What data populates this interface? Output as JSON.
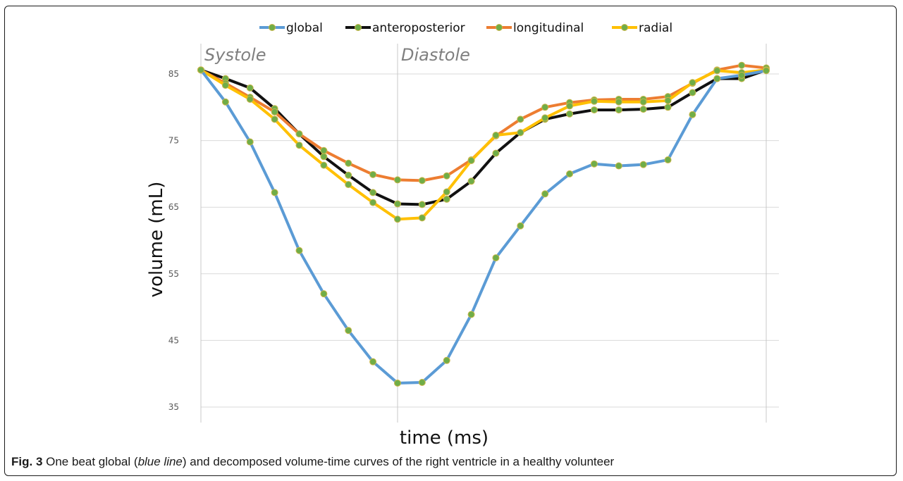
{
  "chart_data": {
    "type": "line",
    "xlabel": "time (ms)",
    "ylabel": "volume (mL)",
    "ylim": [
      35,
      90
    ],
    "yticks": [
      35,
      45,
      55,
      65,
      75,
      85
    ],
    "grid": true,
    "legend_position": "top",
    "phase_labels": [
      "Systole",
      "Diastole"
    ],
    "phase_boundary_index": 8,
    "x": [
      0,
      1,
      2,
      3,
      4,
      5,
      6,
      7,
      8,
      9,
      10,
      11,
      12,
      13,
      14,
      15,
      16,
      17,
      18,
      19,
      20,
      21,
      22,
      23
    ],
    "series": [
      {
        "name": "global",
        "color": "#5b9bd5",
        "values": [
          85.6,
          80.8,
          74.8,
          67.2,
          58.5,
          52.0,
          46.5,
          41.8,
          38.6,
          38.7,
          42.0,
          48.9,
          57.4,
          62.2,
          67.0,
          70.0,
          71.5,
          71.2,
          71.4,
          72.1,
          78.9,
          84.3,
          84.8,
          85.5
        ]
      },
      {
        "name": "anteroposterior",
        "color": "#111111",
        "values": [
          85.6,
          84.3,
          82.9,
          79.8,
          76.0,
          72.6,
          69.8,
          67.2,
          65.5,
          65.4,
          66.2,
          68.9,
          73.1,
          76.2,
          78.2,
          79.0,
          79.6,
          79.6,
          79.7,
          80.0,
          82.2,
          84.3,
          84.3,
          85.6
        ]
      },
      {
        "name": "longitudinal",
        "color": "#ed7d31",
        "values": [
          85.6,
          83.6,
          81.5,
          79.3,
          76.0,
          73.5,
          71.6,
          69.9,
          69.1,
          69.0,
          69.7,
          72.1,
          75.7,
          78.2,
          80.0,
          80.7,
          81.1,
          81.2,
          81.2,
          81.6,
          83.6,
          85.6,
          86.3,
          85.9
        ]
      },
      {
        "name": "radial",
        "color": "#ffc000",
        "values": [
          85.6,
          83.3,
          81.2,
          78.2,
          74.3,
          71.3,
          68.4,
          65.7,
          63.2,
          63.4,
          67.3,
          72.0,
          75.8,
          76.2,
          78.4,
          80.2,
          80.9,
          80.8,
          80.8,
          81.0,
          83.7,
          85.5,
          85.2,
          85.6
        ]
      }
    ],
    "marker_color": "#70ad47"
  },
  "caption": {
    "fig_label": "Fig. 3",
    "text_before": " One beat global (",
    "emph": "blue line",
    "text_after": ") and decomposed volume-time curves of the right ventricle in a healthy volunteer"
  }
}
